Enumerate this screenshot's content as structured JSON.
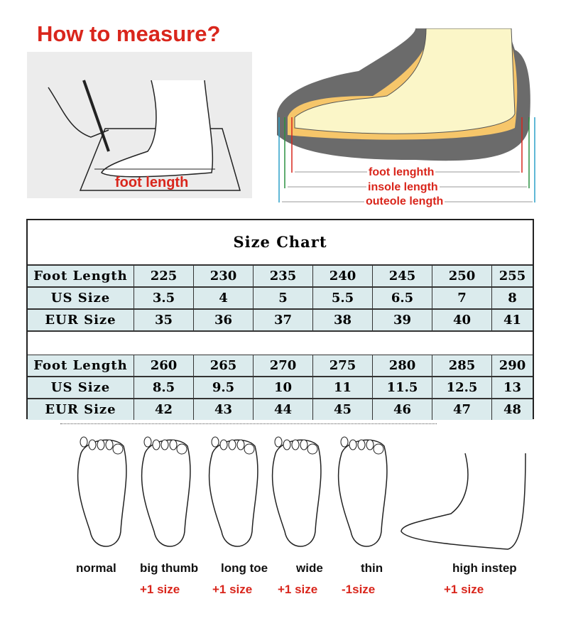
{
  "header": {
    "title": "How to measure?",
    "foot_length_label": "foot length"
  },
  "shoe_diagram": {
    "labels": [
      "foot lenghth",
      "insole length",
      "outeole length"
    ]
  },
  "size_chart": {
    "title": "Size Chart",
    "tables": [
      {
        "rows": [
          {
            "label": "Foot Length",
            "values": [
              "225",
              "230",
              "235",
              "240",
              "245",
              "250",
              "255"
            ]
          },
          {
            "label": "US Size",
            "values": [
              "3.5",
              "4",
              "5",
              "5.5",
              "6.5",
              "7",
              "8"
            ]
          },
          {
            "label": "EUR Size",
            "values": [
              "35",
              "36",
              "37",
              "38",
              "39",
              "40",
              "41"
            ]
          }
        ]
      },
      {
        "rows": [
          {
            "label": "Foot Length",
            "values": [
              "260",
              "265",
              "270",
              "275",
              "280",
              "285",
              "290"
            ]
          },
          {
            "label": "US Size",
            "values": [
              "8.5",
              "9.5",
              "10",
              "11",
              "11.5",
              "12.5",
              "13"
            ]
          },
          {
            "label": "EUR Size",
            "values": [
              "42",
              "43",
              "44",
              "45",
              "46",
              "47",
              "48"
            ]
          }
        ]
      }
    ]
  },
  "foot_types": [
    {
      "name": "normal",
      "advice": ""
    },
    {
      "name": "big thumb",
      "advice": "+1 size"
    },
    {
      "name": "long toe",
      "advice": "+1 size"
    },
    {
      "name": "wide",
      "advice": "+1 size"
    },
    {
      "name": "thin",
      "advice": "-1size"
    },
    {
      "name": "high instep",
      "advice": "+1 size"
    }
  ],
  "colors": {
    "accent": "#d9261c",
    "table_fill": "#dbebed"
  }
}
